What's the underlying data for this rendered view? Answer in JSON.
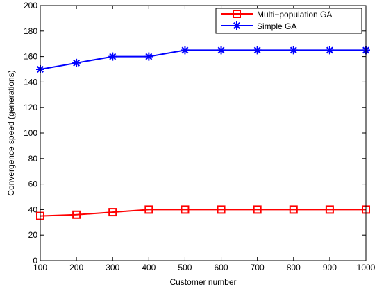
{
  "chart_data": {
    "type": "line",
    "title": "",
    "xlabel": "Customer number",
    "ylabel": "Convergence speed (generations)",
    "xlim": [
      100,
      1000
    ],
    "ylim": [
      0,
      200
    ],
    "x": [
      100,
      200,
      300,
      400,
      500,
      600,
      700,
      800,
      900,
      1000
    ],
    "x_ticks": [
      "100",
      "200",
      "300",
      "400",
      "500",
      "600",
      "700",
      "800",
      "900",
      "1000"
    ],
    "y_ticks": [
      "0",
      "20",
      "40",
      "60",
      "80",
      "100",
      "120",
      "140",
      "160",
      "180",
      "200"
    ],
    "grid": false,
    "legend_position": "top-right",
    "series": [
      {
        "name": "Multi−population GA",
        "color": "#ff0000",
        "marker": "square",
        "values": [
          35,
          36,
          38,
          40,
          40,
          40,
          40,
          40,
          40,
          40
        ]
      },
      {
        "name": "Simple GA",
        "color": "#0000ff",
        "marker": "asterisk",
        "values": [
          150,
          155,
          160,
          160,
          165,
          165,
          165,
          165,
          165,
          165
        ]
      }
    ]
  }
}
